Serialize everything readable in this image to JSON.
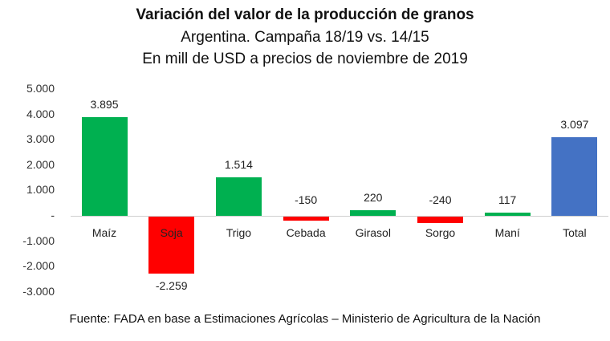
{
  "chart_data": {
    "type": "bar",
    "title": "Variación del valor de la producción de granos",
    "subtitle": "Argentina. Campaña 18/19 vs. 14/15",
    "subtitle2": "En mill de USD a precios de noviembre de 2019",
    "xlabel": "",
    "ylabel": "",
    "ylim": [
      -3000,
      5000
    ],
    "yticks": [
      5000,
      4000,
      3000,
      2000,
      1000,
      0,
      -1000,
      -2000,
      -3000
    ],
    "ytick_labels": [
      "5.000",
      "4.000",
      "3.000",
      "2.000",
      "1.000",
      "-",
      "-1.000",
      "-2.000",
      "-3.000"
    ],
    "grid": false,
    "legend": null,
    "categories": [
      "Maíz",
      "Soja",
      "Trigo",
      "Cebada",
      "Girasol",
      "Sorgo",
      "Maní",
      "Total"
    ],
    "values": [
      3895,
      -2259,
      1514,
      -150,
      220,
      -240,
      117,
      3097
    ],
    "value_labels": [
      "3.895",
      "-2.259",
      "1.514",
      "-150",
      "220",
      "-240",
      "117",
      "3.097"
    ],
    "colors": [
      "#00b050",
      "#ff0000",
      "#00b050",
      "#ff0000",
      "#00b050",
      "#ff0000",
      "#00b050",
      "#4472c4"
    ],
    "source": "Fuente: FADA en base a Estimaciones Agrícolas – Ministerio de Agricultura de la Nación"
  },
  "colors": {
    "positive": "#00b050",
    "negative": "#ff0000",
    "total": "#4472c4",
    "axis": "#d0d0d0"
  }
}
